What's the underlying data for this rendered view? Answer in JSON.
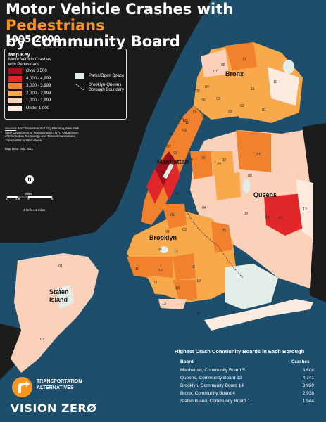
{
  "title": {
    "line1": "Motor Vehicle Crashes with ",
    "accent": "Pedestrians",
    "line2": "by Community Board",
    "years": "1995-2009"
  },
  "legend": {
    "title": "Map Key",
    "subtitle_1": "Motor Vehicle Crashes",
    "subtitle_2": "with Pedestrians",
    "items": [
      {
        "label": "Over 8,500",
        "color": "#a30f1c"
      },
      {
        "label": "4,000 - 4,999",
        "color": "#e2272b"
      },
      {
        "label": "3,000 - 3,999",
        "color": "#f1812c"
      },
      {
        "label": "2,000 - 2,999",
        "color": "#f9a94c"
      },
      {
        "label": "1,000 - 1,999",
        "color": "#fbd2b9"
      },
      {
        "label": "Under 1,000",
        "color": "#fdebe0"
      }
    ],
    "parks_label": "Parks/Open Space",
    "boundary_label_1": "Brooklyn-Queens",
    "boundary_label_2": "Borough Boundary"
  },
  "sources": {
    "label": "Sources",
    "text_1": ": NYC Department of City Planning, New York",
    "text_2": "State Department of Transportation, NYC Department",
    "text_3": "of Information Technology and Telecommunications,",
    "text_4": "Transportation Alternatives.",
    "map_date": "Map Date: July 2011"
  },
  "scale": {
    "north": "n",
    "label": "Miles",
    "ticks": [
      "0",
      "1.5",
      "3",
      "6"
    ],
    "note": "1 inch = 4 miles"
  },
  "boroughs": {
    "bronx": "Bronx",
    "manhattan": "Manhattan",
    "queens": "Queens",
    "brooklyn": "Brooklyn",
    "staten_1": "Staten",
    "staten_2": "Island"
  },
  "board_labels": [
    "08",
    "12",
    "07",
    "05",
    "10",
    "09",
    "11",
    "02",
    "01",
    "06",
    "03",
    "04",
    "08",
    "01",
    "02",
    "03",
    "04",
    "05",
    "06",
    "07",
    "09",
    "10",
    "11",
    "12",
    "13",
    "14",
    "01",
    "02",
    "03",
    "08",
    "09",
    "12",
    "13",
    "14",
    "07",
    "13",
    "16",
    "18",
    "12",
    "15",
    "11",
    "10",
    "17",
    "06",
    "05",
    "04",
    "03",
    "02",
    "01",
    "01",
    "02",
    "03"
  ],
  "table": {
    "title": "Highest Crash Community Boards in Each Borough",
    "col_board": "Board",
    "col_crashes": "Crashes",
    "rows": [
      {
        "board": "Manhattan, Community Board 5",
        "crashes": "8,604"
      },
      {
        "board": "Queens, Community Board 12",
        "crashes": "4,741"
      },
      {
        "board": "Brooklyn, Community Board 14",
        "crashes": "3,920"
      },
      {
        "board": "Bronx, Community Board 4",
        "crashes": "2,938"
      },
      {
        "board": "Staten Island, Community Board 1",
        "crashes": "1,944"
      }
    ]
  },
  "logo": {
    "line1": "TRANSPORTATION",
    "line2": "ALTERNATIVES",
    "tagline": "VISION ZERØ"
  },
  "colors": {
    "water": "#1d4e6b",
    "land_dark": "#1c1c1c",
    "accent": "#f7941d",
    "parks": "#e4eee9"
  }
}
